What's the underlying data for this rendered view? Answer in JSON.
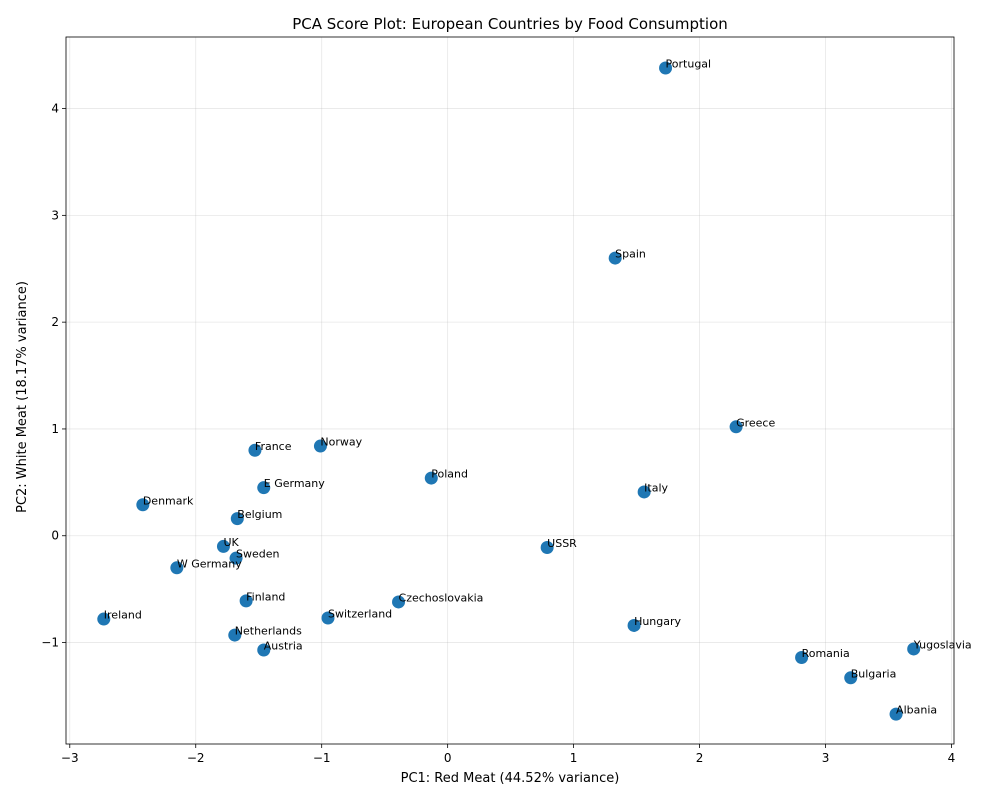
{
  "chart_data": {
    "type": "scatter",
    "title": "PCA Score Plot: European Countries by Food Consumption",
    "xlabel": "PC1: Red Meat (44.52% variance)",
    "ylabel": "PC2: White Meat (18.17% variance)",
    "xlim": [
      -3.03,
      4.02
    ],
    "ylim": [
      -1.95,
      4.67
    ],
    "xticks": [
      -3,
      -2,
      -1,
      0,
      1,
      2,
      3,
      4
    ],
    "yticks": [
      -1,
      0,
      1,
      2,
      3,
      4
    ],
    "grid": true,
    "color": "#1f77b4",
    "points": [
      {
        "label": "Albania",
        "x": 3.56,
        "y": -1.67
      },
      {
        "label": "Austria",
        "x": -1.46,
        "y": -1.07
      },
      {
        "label": "Belgium",
        "x": -1.67,
        "y": 0.16
      },
      {
        "label": "Bulgaria",
        "x": 3.2,
        "y": -1.33
      },
      {
        "label": "Czechoslovakia",
        "x": -0.39,
        "y": -0.62
      },
      {
        "label": "Denmark",
        "x": -2.42,
        "y": 0.29
      },
      {
        "label": "E Germany",
        "x": -1.46,
        "y": 0.45
      },
      {
        "label": "Finland",
        "x": -1.6,
        "y": -0.61
      },
      {
        "label": "France",
        "x": -1.53,
        "y": 0.8
      },
      {
        "label": "Greece",
        "x": 2.29,
        "y": 1.02
      },
      {
        "label": "Hungary",
        "x": 1.48,
        "y": -0.84
      },
      {
        "label": "Ireland",
        "x": -2.73,
        "y": -0.78
      },
      {
        "label": "Italy",
        "x": 1.56,
        "y": 0.41
      },
      {
        "label": "Netherlands",
        "x": -1.69,
        "y": -0.93
      },
      {
        "label": "Norway",
        "x": -1.01,
        "y": 0.84
      },
      {
        "label": "Poland",
        "x": -0.13,
        "y": 0.54
      },
      {
        "label": "Portugal",
        "x": 1.73,
        "y": 4.38
      },
      {
        "label": "Romania",
        "x": 2.81,
        "y": -1.14
      },
      {
        "label": "Spain",
        "x": 1.33,
        "y": 2.6
      },
      {
        "label": "Sweden",
        "x": -1.68,
        "y": -0.21
      },
      {
        "label": "Switzerland",
        "x": -0.95,
        "y": -0.77
      },
      {
        "label": "UK",
        "x": -1.78,
        "y": -0.1
      },
      {
        "label": "USSR",
        "x": 0.79,
        "y": -0.11
      },
      {
        "label": "W Germany",
        "x": -2.15,
        "y": -0.3
      },
      {
        "label": "Yugoslavia",
        "x": 3.7,
        "y": -1.06
      }
    ]
  }
}
